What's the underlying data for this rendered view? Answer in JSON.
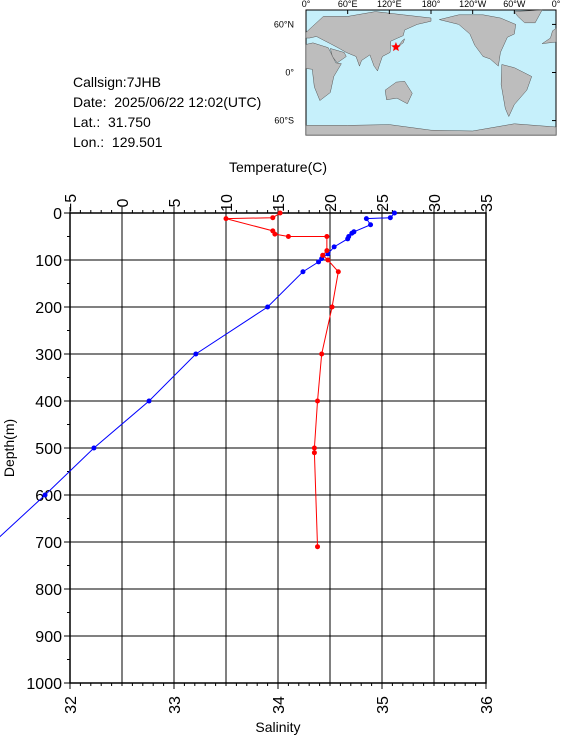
{
  "station": {
    "callsign": "Callsign:7JHB",
    "date": "Date:  2025/06/22 12:02(UTC)",
    "lat": "Lat.:  31.750",
    "lon": "Lon.:  129.501"
  },
  "map": {
    "top_labels": [
      "0°",
      "60°E",
      "120°E",
      "180°",
      "120°W",
      "60°W",
      "0°"
    ],
    "lon_ticks": [
      0,
      60,
      120,
      180,
      240,
      300,
      360
    ],
    "right_labels": [
      "60°N",
      "0°",
      "60°S"
    ],
    "lat_ticks": [
      60,
      0,
      -60
    ],
    "ocean_color": "#c6f0fb",
    "land_color": "#bdbdbd",
    "marker": {
      "lon": 129.501,
      "lat": 31.75,
      "color": "#ff0000",
      "symbol": "star"
    }
  },
  "chart_data": {
    "type": "line",
    "title": "",
    "top_axis": {
      "label": "Temperature(C)",
      "range": [
        -5,
        35
      ],
      "ticks": [
        -5,
        0,
        5,
        10,
        15,
        20,
        25,
        30,
        35
      ],
      "tick_labels": [
        "−5",
        "0",
        "5",
        "10",
        "15",
        "20",
        "25",
        "30",
        "35"
      ]
    },
    "bottom_axis": {
      "label": "Salinity",
      "range": [
        32,
        36
      ],
      "ticks": [
        32,
        33,
        34,
        35,
        36
      ],
      "tick_labels": [
        "32",
        "33",
        "34",
        "35",
        "36"
      ]
    },
    "y_axis": {
      "label": "Depth(m)",
      "range": [
        0,
        1000
      ],
      "inverted": true,
      "ticks": [
        0,
        100,
        200,
        300,
        400,
        500,
        600,
        700,
        800,
        900,
        1000
      ],
      "tick_labels": [
        "0",
        "100",
        "200",
        "300",
        "400",
        "500",
        "600",
        "700",
        "800",
        "900",
        "1000"
      ]
    },
    "grid": true,
    "series": [
      {
        "axis": "temperature",
        "color": "#0000ff",
        "points": [
          {
            "x": 26.2,
            "depth": 0
          },
          {
            "x": 25.8,
            "depth": 10
          },
          {
            "x": 23.5,
            "depth": 12
          },
          {
            "x": 23.9,
            "depth": 25
          },
          {
            "x": 22.3,
            "depth": 40
          },
          {
            "x": 22.1,
            "depth": 43
          },
          {
            "x": 21.8,
            "depth": 50
          },
          {
            "x": 21.7,
            "depth": 55
          },
          {
            "x": 20.4,
            "depth": 72
          },
          {
            "x": 19.8,
            "depth": 87
          },
          {
            "x": 19.2,
            "depth": 97
          },
          {
            "x": 18.9,
            "depth": 104
          },
          {
            "x": 17.4,
            "depth": 125
          },
          {
            "x": 14.0,
            "depth": 200
          },
          {
            "x": 7.1,
            "depth": 300
          },
          {
            "x": 2.6,
            "depth": 400
          },
          {
            "x": -2.7,
            "depth": 500
          },
          {
            "x": -7.4,
            "depth": 600
          },
          {
            "x": -12.3,
            "depth": 700
          }
        ]
      },
      {
        "axis": "salinity",
        "color": "#ff0000",
        "points": [
          {
            "x": 34.02,
            "depth": 0
          },
          {
            "x": 33.95,
            "depth": 10
          },
          {
            "x": 33.5,
            "depth": 12
          },
          {
            "x": 33.95,
            "depth": 38
          },
          {
            "x": 33.97,
            "depth": 45
          },
          {
            "x": 34.1,
            "depth": 50
          },
          {
            "x": 34.47,
            "depth": 50
          },
          {
            "x": 34.47,
            "depth": 80
          },
          {
            "x": 34.43,
            "depth": 90
          },
          {
            "x": 34.48,
            "depth": 100
          },
          {
            "x": 34.58,
            "depth": 125
          },
          {
            "x": 34.52,
            "depth": 200
          },
          {
            "x": 34.42,
            "depth": 300
          },
          {
            "x": 34.38,
            "depth": 400
          },
          {
            "x": 34.35,
            "depth": 500
          },
          {
            "x": 34.35,
            "depth": 510
          },
          {
            "x": 34.38,
            "depth": 710
          }
        ]
      }
    ]
  }
}
